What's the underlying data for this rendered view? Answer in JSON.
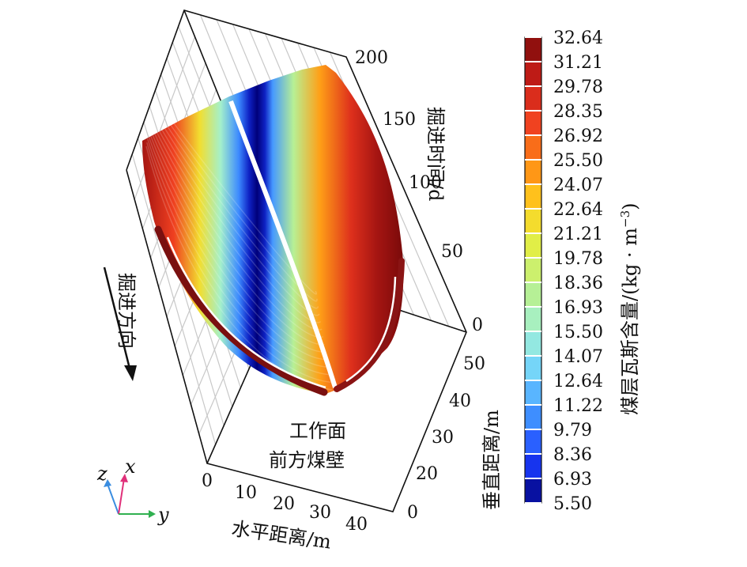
{
  "chart_data": {
    "type": "surface3d",
    "axes": {
      "x": {
        "label": "水平距离/m",
        "ticks": [
          "0",
          "10",
          "20",
          "30",
          "40"
        ],
        "range": [
          0,
          45
        ]
      },
      "y": {
        "label": "垂直距离/m",
        "ticks": [
          "0",
          "20",
          "30",
          "40",
          "50"
        ],
        "range": [
          0,
          55
        ]
      },
      "z": {
        "label": "掘进时间/d",
        "ticks": [
          "0",
          "50",
          "100",
          "150",
          "200"
        ],
        "range": [
          0,
          200
        ]
      }
    },
    "grid": true,
    "colorbar": {
      "label": "煤层瓦斯含量/(kg · m",
      "label_superscript": "−3",
      "label_close": ")",
      "ticks": [
        "32.64",
        "31.21",
        "29.78",
        "28.35",
        "26.92",
        "25.50",
        "24.07",
        "22.64",
        "21.21",
        "19.78",
        "18.36",
        "16.93",
        "15.50",
        "14.07",
        "12.64",
        "11.22",
        "9.79",
        "8.36",
        "6.93",
        "5.50"
      ],
      "min": 5.5,
      "max": 32.64,
      "colormap": [
        "#00007a",
        "#1a3cff",
        "#3d8cff",
        "#6ccfff",
        "#9ff0d8",
        "#b8f090",
        "#dff04a",
        "#ffd21e",
        "#ff8a14",
        "#f04020",
        "#c81e18",
        "#7a0a0a"
      ],
      "placement": "right"
    },
    "surface_description": {
      "center_content": 5.5,
      "edge_content": 32.64
    },
    "annotations": {
      "direction": "掘进方向",
      "face_line1": "工作面",
      "face_line2": "前方煤壁"
    },
    "triad": {
      "x": "x",
      "y": "y",
      "z": "z"
    }
  }
}
